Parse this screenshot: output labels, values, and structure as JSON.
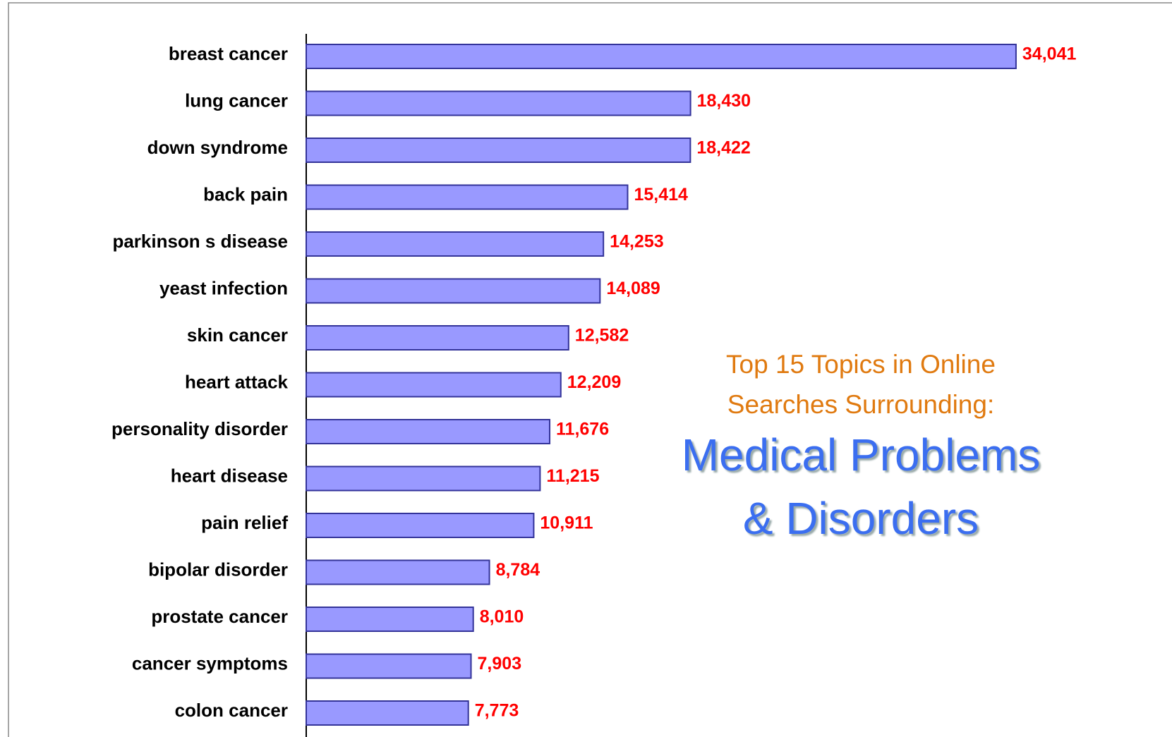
{
  "chart_data": {
    "type": "bar",
    "orientation": "horizontal",
    "title": "Top 15 Topics in Online Searches Surrounding:",
    "subtitle": "Medical Problems & Disorders",
    "categories": [
      "breast cancer",
      "lung cancer",
      "down syndrome",
      "back pain",
      "parkinson s disease",
      "yeast infection",
      "skin cancer",
      "heart attack",
      "personality disorder",
      "heart disease",
      "pain relief",
      "bipolar disorder",
      "prostate cancer",
      "cancer symptoms",
      "colon cancer"
    ],
    "values": [
      34041,
      18430,
      18422,
      15414,
      14253,
      14089,
      12582,
      12209,
      11676,
      11215,
      10911,
      8784,
      8010,
      7903,
      7773
    ],
    "value_labels": [
      "34,041",
      "18,430",
      "18,422",
      "15,414",
      "14,253",
      "14,089",
      "12,582",
      "12,209",
      "11,676",
      "11,215",
      "10,911",
      "8,784",
      "8,010",
      "7,903",
      "7,773"
    ],
    "color": "#9999ff",
    "edge_color": "#333399",
    "label_color": "#ff0000",
    "xlim": [
      0,
      40000
    ]
  }
}
